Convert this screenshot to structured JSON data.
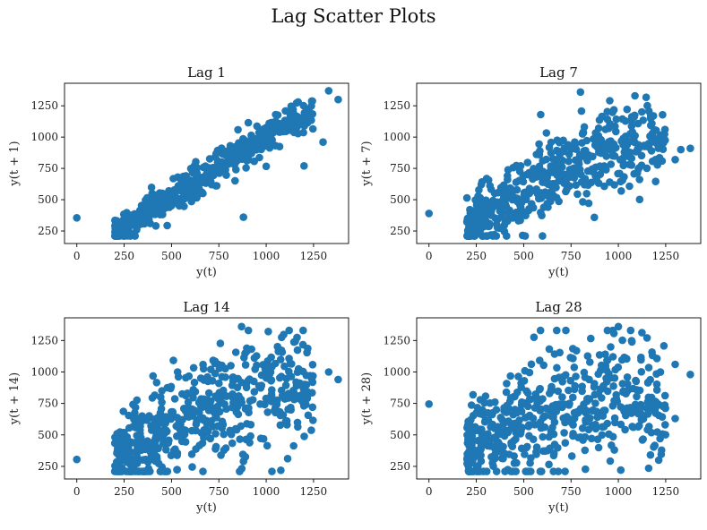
{
  "figure": {
    "title": "Lag Scatter Plots"
  },
  "colors": {
    "points": "#1f77b4"
  },
  "chart_data": [
    {
      "type": "scatter",
      "title": "Lag 1",
      "xlabel": "y(t)",
      "ylabel": "y(t + 1)",
      "xlim": [
        -65,
        1435
      ],
      "ylim": [
        150,
        1430
      ],
      "xticks": [
        0,
        250,
        500,
        750,
        1000,
        1250
      ],
      "yticks": [
        250,
        500,
        750,
        1000,
        1250
      ],
      "outliers": [
        [
          0,
          355
        ],
        [
          880,
          360
        ],
        [
          1200,
          770
        ],
        [
          1300,
          960
        ],
        [
          1330,
          1370
        ],
        [
          1380,
          1300
        ]
      ],
      "cloud": {
        "spread": 70,
        "trend": [
          [
            210,
            230
          ],
          [
            400,
            420
          ],
          [
            600,
            620
          ],
          [
            800,
            820
          ],
          [
            1000,
            1010
          ],
          [
            1250,
            1230
          ]
        ]
      }
    },
    {
      "type": "scatter",
      "title": "Lag 7",
      "xlabel": "y(t)",
      "ylabel": "y(t + 7)",
      "xlim": [
        -65,
        1435
      ],
      "ylim": [
        150,
        1430
      ],
      "xticks": [
        0,
        250,
        500,
        750,
        1000,
        1250
      ],
      "yticks": [
        250,
        500,
        750,
        1000,
        1250
      ],
      "outliers": [
        [
          0,
          390
        ],
        [
          800,
          1360
        ],
        [
          1380,
          910
        ],
        [
          1300,
          820
        ],
        [
          1330,
          900
        ],
        [
          590,
          1180
        ]
      ],
      "cloud": {
        "spread": 170,
        "trend": [
          [
            210,
            280
          ],
          [
            400,
            460
          ],
          [
            600,
            640
          ],
          [
            800,
            800
          ],
          [
            1000,
            920
          ],
          [
            1250,
            980
          ]
        ]
      }
    },
    {
      "type": "scatter",
      "title": "Lag 14",
      "xlabel": "y(t)",
      "ylabel": "y(t + 14)",
      "xlim": [
        -65,
        1435
      ],
      "ylim": [
        150,
        1430
      ],
      "xticks": [
        0,
        250,
        500,
        750,
        1000,
        1250
      ],
      "yticks": [
        250,
        500,
        750,
        1000,
        1250
      ],
      "outliers": [
        [
          0,
          305
        ],
        [
          530,
          225
        ],
        [
          880,
          290
        ],
        [
          870,
          1360
        ],
        [
          1380,
          940
        ],
        [
          1330,
          1000
        ]
      ],
      "cloud": {
        "spread": 220,
        "trend": [
          [
            210,
            300
          ],
          [
            400,
            500
          ],
          [
            600,
            660
          ],
          [
            800,
            780
          ],
          [
            1000,
            860
          ],
          [
            1250,
            920
          ]
        ]
      }
    },
    {
      "type": "scatter",
      "title": "Lag 28",
      "xlabel": "y(t)",
      "ylabel": "y(t + 28)",
      "xlim": [
        -65,
        1435
      ],
      "ylim": [
        150,
        1430
      ],
      "xticks": [
        0,
        250,
        500,
        750,
        1000,
        1250
      ],
      "yticks": [
        250,
        500,
        750,
        1000,
        1250
      ],
      "outliers": [
        [
          0,
          745
        ],
        [
          1000,
          1360
        ],
        [
          1380,
          980
        ],
        [
          1300,
          1060
        ],
        [
          1300,
          630
        ],
        [
          1220,
          470
        ]
      ],
      "cloud": {
        "spread": 250,
        "trend": [
          [
            210,
            340
          ],
          [
            400,
            520
          ],
          [
            600,
            660
          ],
          [
            800,
            760
          ],
          [
            1000,
            780
          ],
          [
            1250,
            760
          ]
        ]
      }
    }
  ]
}
